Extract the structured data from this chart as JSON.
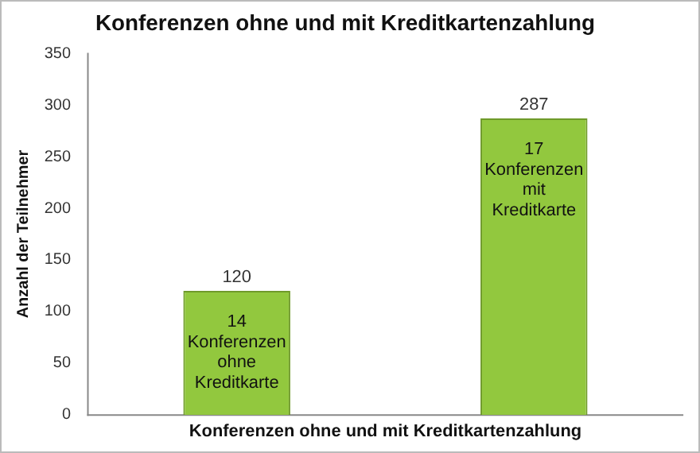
{
  "chart_data": {
    "type": "bar",
    "title": "Konferenzen ohne und mit Kreditkartenzahlung",
    "xlabel": "Konferenzen ohne und mit Kreditkartenzahlung",
    "ylabel": "Anzahl der Teilnehmer",
    "categories": [
      "14 Konferenzen ohne Kreditkarte",
      "17 Konferenzen mit Kreditkarte"
    ],
    "values": [
      120,
      287
    ],
    "color": "#92c83e",
    "ylim": [
      0,
      350
    ],
    "yticks": [
      0,
      50,
      100,
      150,
      200,
      250,
      300,
      350
    ],
    "data_labels": true,
    "grid": false,
    "legend": false
  }
}
